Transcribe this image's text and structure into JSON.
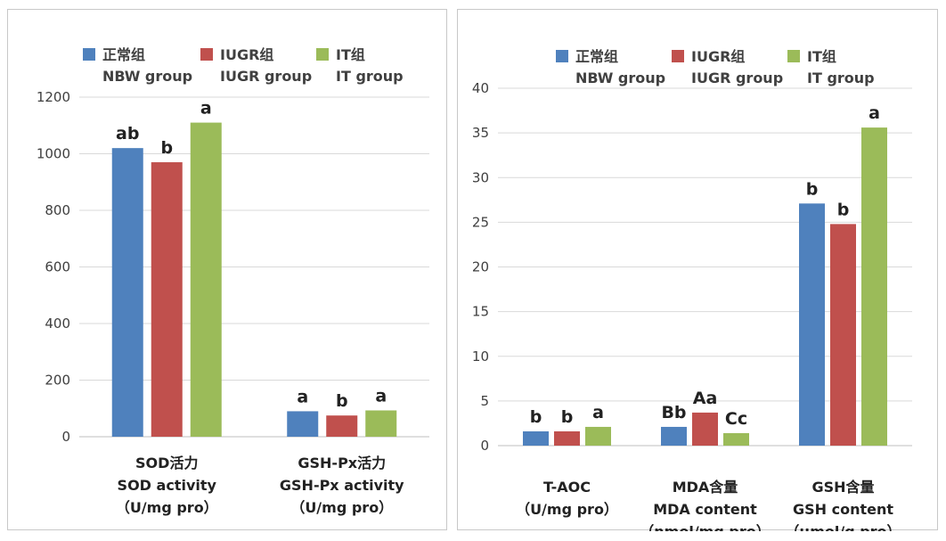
{
  "colors": {
    "nbw": "#4f81bd",
    "iugr": "#c0504d",
    "it": "#9bbb59",
    "grid": "#d9d9d9",
    "axis": "#bfbfbf"
  },
  "chart_data": [
    {
      "type": "bar",
      "legend": [
        {
          "zh": "正常组",
          "en": "NBW group"
        },
        {
          "zh": "IUGR组",
          "en": "IUGR group"
        },
        {
          "zh": "IT组",
          "en": "IT group"
        }
      ],
      "categories": [
        {
          "lines": [
            "SOD活力",
            "SOD activity",
            "（U/mg pro）"
          ]
        },
        {
          "lines": [
            "GSH-Px活力",
            "GSH-Px activity",
            "（U/mg pro）"
          ]
        }
      ],
      "series": [
        {
          "name": "正常组 NBW group",
          "values": [
            1020,
            90
          ],
          "labels": [
            "ab",
            "a"
          ]
        },
        {
          "name": "IUGR组 IUGR group",
          "values": [
            970,
            75
          ],
          "labels": [
            "b",
            "b"
          ]
        },
        {
          "name": "IT组 IT group",
          "values": [
            1110,
            93
          ],
          "labels": [
            "a",
            "a"
          ]
        }
      ],
      "ylim": [
        0,
        1200
      ],
      "yticks": [
        0,
        200,
        400,
        600,
        800,
        1000,
        1200
      ],
      "grid": true,
      "legend_position": "top"
    },
    {
      "type": "bar",
      "legend": [
        {
          "zh": "正常组",
          "en": "NBW group"
        },
        {
          "zh": "IUGR组",
          "en": "IUGR group"
        },
        {
          "zh": "IT组",
          "en": "IT group"
        }
      ],
      "categories": [
        {
          "lines": [
            "T-AOC",
            "（U/mg pro）"
          ]
        },
        {
          "lines": [
            "MDA含量",
            "MDA content",
            "（nmol/mg pro）"
          ]
        },
        {
          "lines": [
            "GSH含量",
            "GSH content",
            "（μmol/g pro）"
          ]
        }
      ],
      "series": [
        {
          "name": "正常组 NBW group",
          "values": [
            1.6,
            2.1,
            27.1
          ],
          "labels": [
            "b",
            "Bb",
            "b"
          ]
        },
        {
          "name": "IUGR组 IUGR group",
          "values": [
            1.6,
            3.7,
            24.8
          ],
          "labels": [
            "b",
            "Aa",
            "b"
          ]
        },
        {
          "name": "IT组 IT group",
          "values": [
            2.1,
            1.4,
            35.6
          ],
          "labels": [
            "a",
            "Cc",
            "a"
          ]
        }
      ],
      "ylim": [
        0,
        40
      ],
      "yticks": [
        0,
        5,
        10,
        15,
        20,
        25,
        30,
        35,
        40
      ],
      "grid": true,
      "legend_position": "top"
    }
  ]
}
